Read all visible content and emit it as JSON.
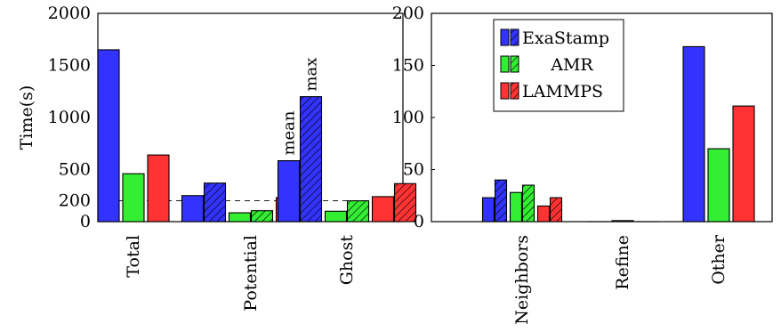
{
  "colors": {
    "ExaStamp": "#3333ff",
    "AMR": "#33ee33",
    "LAMMPS": "#ff3333"
  },
  "chart_data": [
    {
      "type": "bar",
      "ylabel": "Time(s)",
      "ylim": [
        0,
        2000
      ],
      "yticks": [
        "0",
        "200",
        "500",
        "1000",
        "1500",
        "2000"
      ],
      "reference_line": 200,
      "annotations": {
        "mean": "mean",
        "max": "max"
      },
      "categories": [
        "Total",
        "Potential",
        "Ghost"
      ],
      "series": [
        {
          "name": "ExaStamp",
          "key": "ExaStamp",
          "values": [
            1650,
            250,
            585
          ],
          "max_values": [
            null,
            370,
            1200
          ]
        },
        {
          "name": "AMR",
          "key": "AMR",
          "values": [
            460,
            85,
            100
          ],
          "max_values": [
            null,
            105,
            200
          ]
        },
        {
          "name": "LAMMPS",
          "key": "LAMMPS",
          "values": [
            640,
            230,
            240
          ],
          "max_values": [
            null,
            320,
            365
          ]
        }
      ]
    },
    {
      "type": "bar",
      "ylabel": "",
      "ylim": [
        0,
        200
      ],
      "yticks": [
        "0",
        "50",
        "100",
        "150",
        "200"
      ],
      "legend": {
        "position": "top-left",
        "entries": [
          "ExaStamp",
          "AMR",
          "LAMMPS"
        ]
      },
      "categories": [
        "Neighbors",
        "Refine",
        "Other"
      ],
      "series": [
        {
          "name": "ExaStamp",
          "key": "ExaStamp",
          "values": [
            23,
            0,
            168
          ],
          "max_values": [
            40,
            null,
            null
          ]
        },
        {
          "name": "AMR",
          "key": "AMR",
          "values": [
            28,
            1,
            70
          ],
          "max_values": [
            35,
            null,
            null
          ]
        },
        {
          "name": "LAMMPS",
          "key": "LAMMPS",
          "values": [
            15,
            0,
            111
          ],
          "max_values": [
            23,
            null,
            null
          ]
        }
      ]
    }
  ]
}
